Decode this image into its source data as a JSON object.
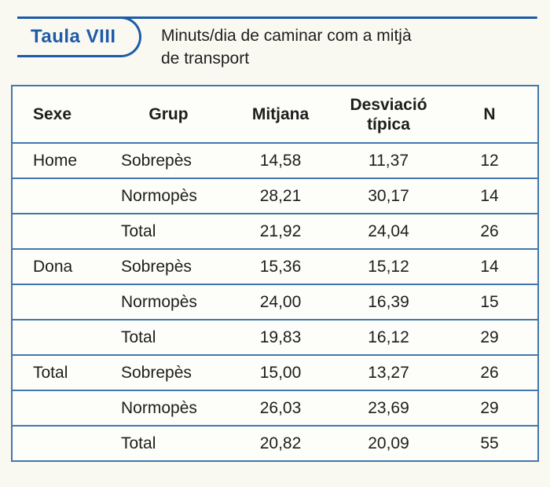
{
  "page": {
    "background": "#faf9f1",
    "accent_color": "#1d5ba8",
    "table_border_color": "#4277ae"
  },
  "header": {
    "tab_label": "Taula VIII",
    "title": "Minuts/dia de caminar com a mitjà\nde transport"
  },
  "table": {
    "columns": [
      "Sexe",
      "Grup",
      "Mitjana",
      "Desviació típica",
      "N"
    ],
    "rows": [
      {
        "sexe": "Home",
        "grup": "Sobrepès",
        "mitjana": "14,58",
        "desviacio": "11,37",
        "n": "12"
      },
      {
        "sexe": "",
        "grup": "Normopès",
        "mitjana": "28,21",
        "desviacio": "30,17",
        "n": "14"
      },
      {
        "sexe": "",
        "grup": "Total",
        "mitjana": "21,92",
        "desviacio": "24,04",
        "n": "26"
      },
      {
        "sexe": "Dona",
        "grup": "Sobrepès",
        "mitjana": "15,36",
        "desviacio": "15,12",
        "n": "14"
      },
      {
        "sexe": "",
        "grup": "Normopès",
        "mitjana": "24,00",
        "desviacio": "16,39",
        "n": "15"
      },
      {
        "sexe": "",
        "grup": "Total",
        "mitjana": "19,83",
        "desviacio": "16,12",
        "n": "29"
      },
      {
        "sexe": "Total",
        "grup": "Sobrepès",
        "mitjana": "15,00",
        "desviacio": "13,27",
        "n": "26"
      },
      {
        "sexe": "",
        "grup": "Normopès",
        "mitjana": "26,03",
        "desviacio": "23,69",
        "n": "29"
      },
      {
        "sexe": "",
        "grup": "Total",
        "mitjana": "20,82",
        "desviacio": "20,09",
        "n": "55"
      }
    ]
  }
}
